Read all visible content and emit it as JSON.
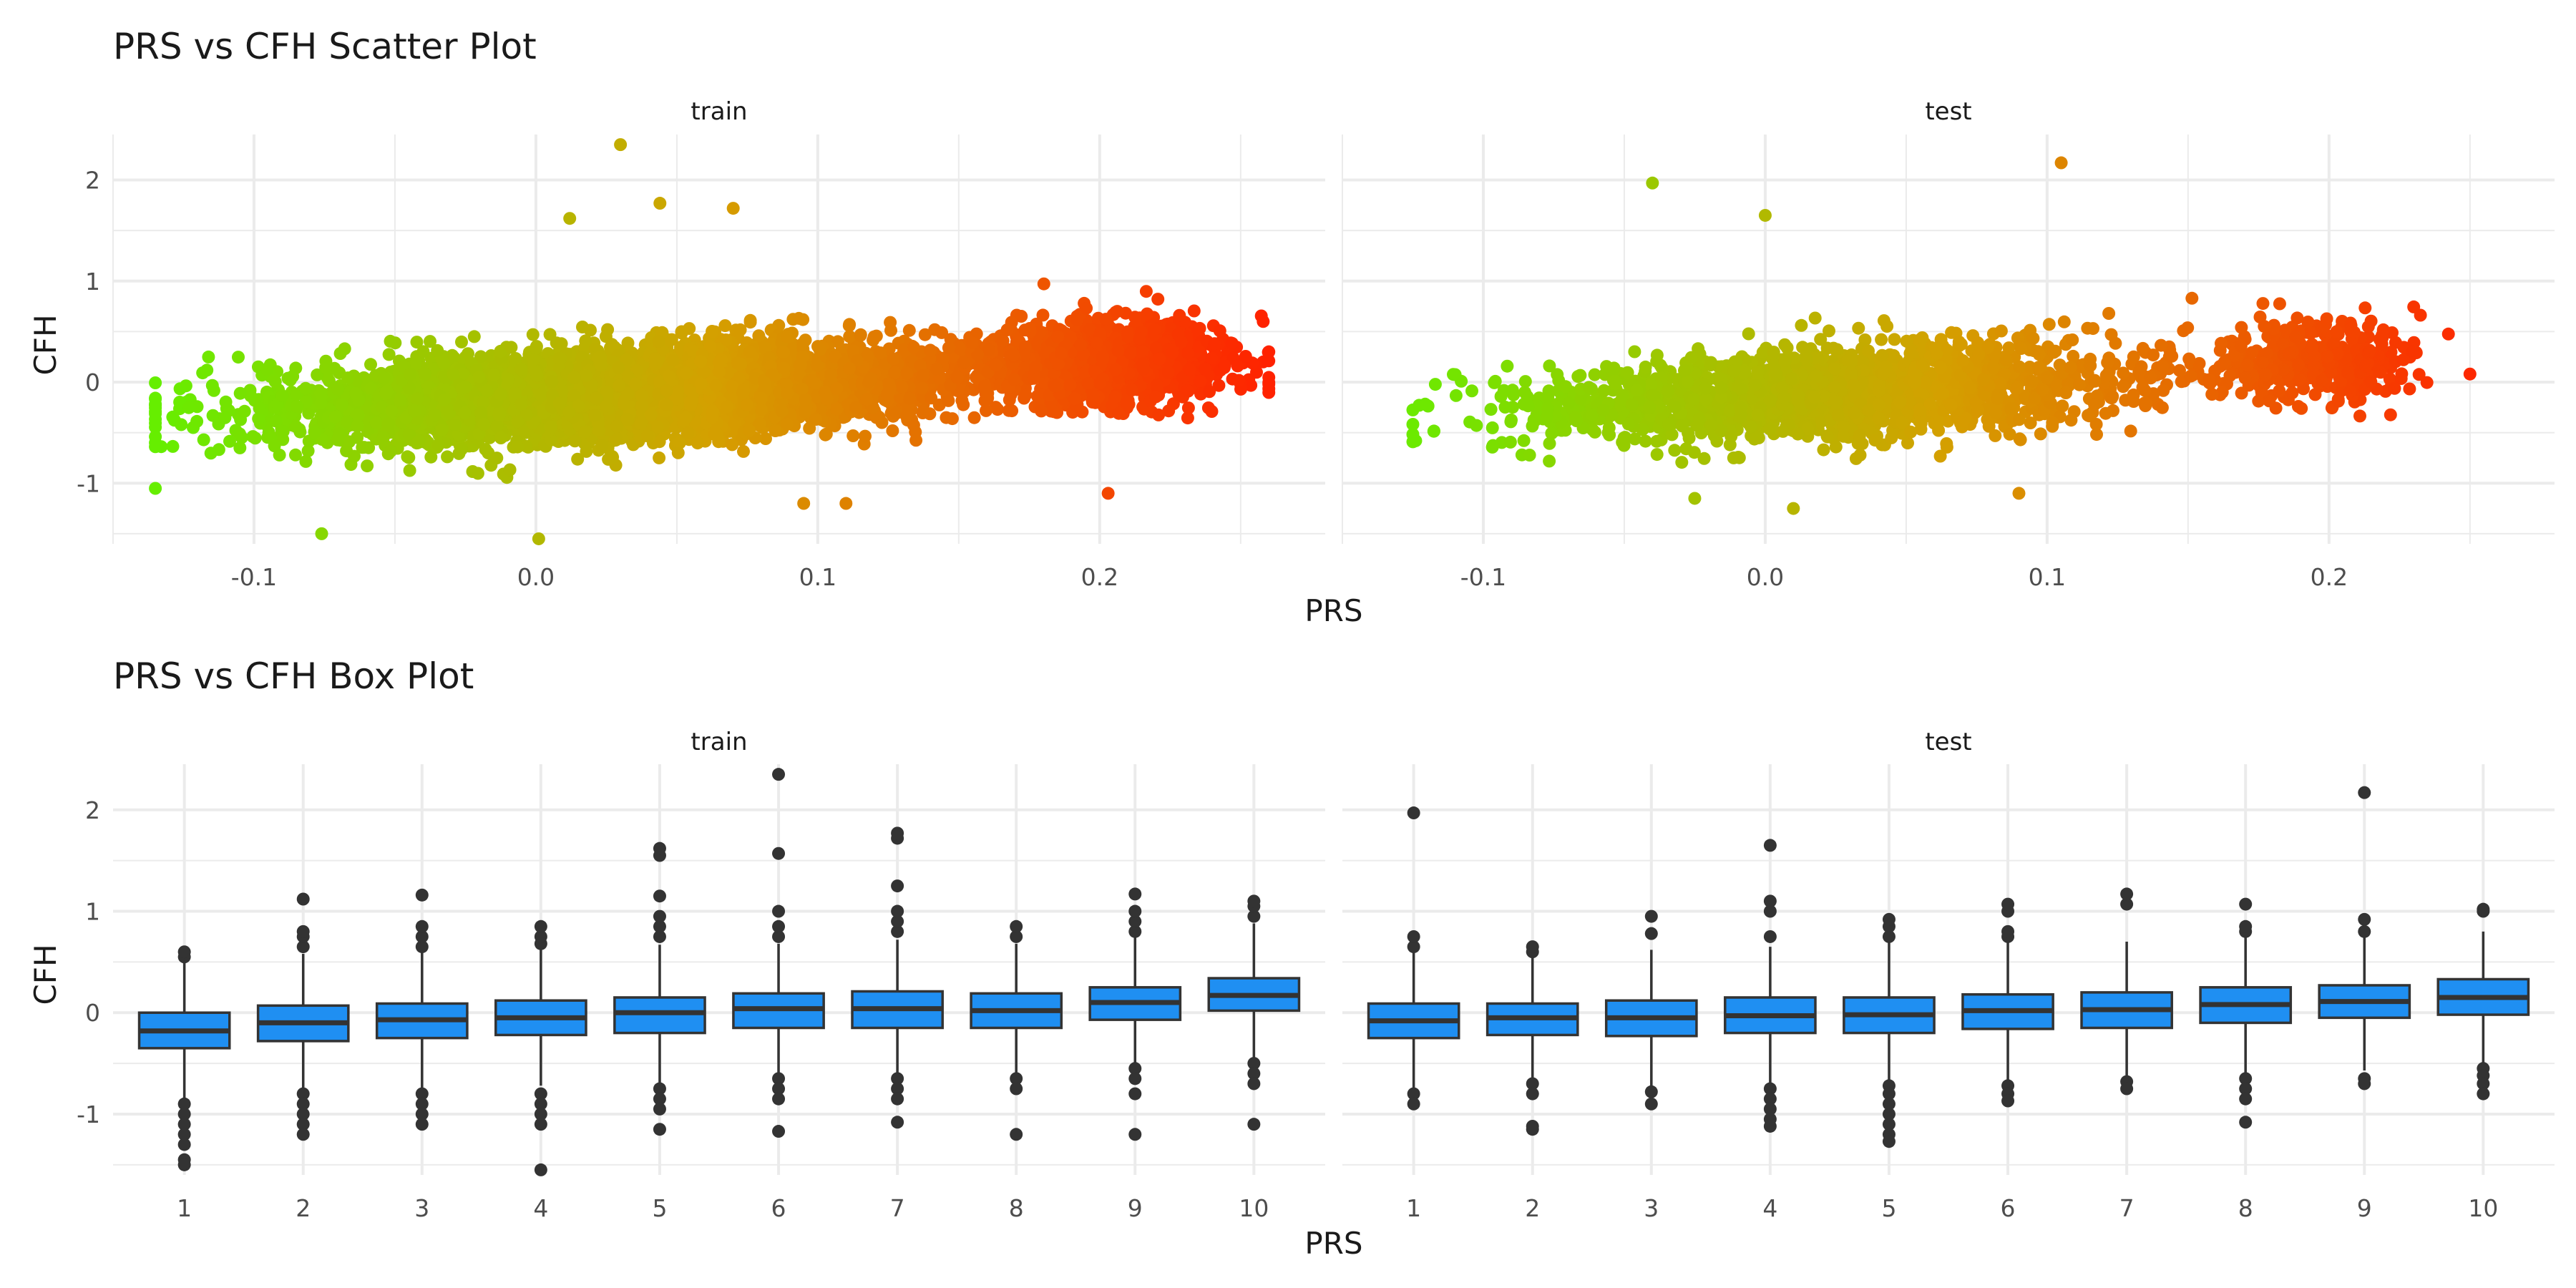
{
  "figure": {
    "scatter_title": "PRS vs CFH Scatter Plot",
    "box_title": "PRS vs CFH Box Plot",
    "xlabel": "PRS",
    "ylabel": "CFH"
  },
  "colors": {
    "gradient_low": "#66ee00",
    "gradient_mid": "#d4a000",
    "gradient_high": "#ff2200",
    "box_fill": "#1f8ff2",
    "box_line": "#333333",
    "grid": "#ebebeb",
    "text": "#1a1a1a",
    "tick_text": "#4d4d4d"
  },
  "chart_data": [
    {
      "type": "scatter",
      "title": "PRS vs CFH Scatter Plot",
      "xlabel": "PRS",
      "ylabel": "CFH",
      "xlim": [
        -0.15,
        0.28
      ],
      "ylim": [
        -1.6,
        2.45
      ],
      "xticks": [
        "-0.1",
        "0.0",
        "0.1",
        "0.2"
      ],
      "xtick_values": [
        -0.1,
        0.0,
        0.1,
        0.2
      ],
      "yticks": [
        "-1",
        "0",
        "1",
        "2"
      ],
      "ytick_values": [
        -1,
        0,
        1,
        2
      ],
      "grid": true,
      "color_encoding": "PRS gradient green (low) to red (high)",
      "panels": [
        {
          "name": "train",
          "n_points": 6000,
          "x_range": [
            -0.135,
            0.26
          ],
          "clusters": [
            {
              "x_range": [
                -0.1,
                0.16
              ],
              "y_mean_at_x_min": -0.3,
              "y_slope": 1.5,
              "y_sd": 0.22
            },
            {
              "x_range": [
                0.16,
                0.25
              ],
              "y_mean": 0.2,
              "y_sd": 0.2
            }
          ],
          "notable_points": [
            {
              "x": -0.135,
              "y": -0.6
            },
            {
              "x": -0.076,
              "y": -1.5
            },
            {
              "x": 0.001,
              "y": -1.55
            },
            {
              "x": 0.03,
              "y": 2.35
            },
            {
              "x": 0.044,
              "y": 1.77
            },
            {
              "x": 0.012,
              "y": 1.62
            },
            {
              "x": 0.07,
              "y": 1.72
            },
            {
              "x": 0.095,
              "y": -1.2
            },
            {
              "x": 0.11,
              "y": -1.2
            },
            {
              "x": 0.203,
              "y": -1.1
            },
            {
              "x": 0.258,
              "y": 0.6
            },
            {
              "x": 0.26,
              "y": 0.3
            }
          ]
        },
        {
          "name": "test",
          "n_points": 2200,
          "x_range": [
            -0.125,
            0.25
          ],
          "clusters": [
            {
              "x_range": [
                -0.1,
                0.15
              ],
              "y_mean_at_x_min": -0.3,
              "y_slope": 1.5,
              "y_sd": 0.22
            },
            {
              "x_range": [
                0.16,
                0.23
              ],
              "y_mean": 0.2,
              "y_sd": 0.2
            }
          ],
          "notable_points": [
            {
              "x": -0.124,
              "y": -0.58
            },
            {
              "x": -0.04,
              "y": 1.97
            },
            {
              "x": 0.0,
              "y": 1.65
            },
            {
              "x": 0.105,
              "y": 2.17
            },
            {
              "x": -0.025,
              "y": -1.15
            },
            {
              "x": 0.01,
              "y": -1.25
            },
            {
              "x": 0.09,
              "y": -1.1
            },
            {
              "x": 0.25,
              "y": 0.08
            }
          ]
        }
      ]
    },
    {
      "type": "box",
      "title": "PRS vs CFH Box Plot",
      "xlabel": "PRS",
      "ylabel": "CFH",
      "categories": [
        "1",
        "2",
        "3",
        "4",
        "5",
        "6",
        "7",
        "8",
        "9",
        "10"
      ],
      "ylim": [
        -1.6,
        2.45
      ],
      "yticks": [
        "-1",
        "0",
        "1",
        "2"
      ],
      "ytick_values": [
        -1,
        0,
        1,
        2
      ],
      "grid": true,
      "panels": [
        {
          "name": "train",
          "boxes": [
            {
              "q1": -0.35,
              "median": -0.18,
              "q3": 0.0,
              "lower": -0.85,
              "upper": 0.52,
              "outliers": [
                0.55,
                0.6,
                -0.9,
                -1.0,
                -1.1,
                -1.2,
                -1.3,
                -1.45,
                -1.5
              ]
            },
            {
              "q1": -0.28,
              "median": -0.1,
              "q3": 0.07,
              "lower": -0.78,
              "upper": 0.58,
              "outliers": [
                0.65,
                0.75,
                0.8,
                1.12,
                -0.8,
                -0.9,
                -1.0,
                -1.1,
                -1.2
              ]
            },
            {
              "q1": -0.25,
              "median": -0.07,
              "q3": 0.09,
              "lower": -0.74,
              "upper": 0.6,
              "outliers": [
                0.65,
                0.75,
                0.85,
                1.16,
                -0.8,
                -0.9,
                -1.0,
                -1.1
              ]
            },
            {
              "q1": -0.22,
              "median": -0.05,
              "q3": 0.12,
              "lower": -0.72,
              "upper": 0.62,
              "outliers": [
                0.68,
                0.75,
                0.85,
                -0.8,
                -0.9,
                -1.0,
                -1.1,
                -1.55
              ]
            },
            {
              "q1": -0.2,
              "median": 0.0,
              "q3": 0.15,
              "lower": -0.7,
              "upper": 0.67,
              "outliers": [
                0.75,
                0.85,
                0.95,
                1.15,
                1.55,
                1.62,
                -0.75,
                -0.85,
                -0.95,
                -1.15
              ]
            },
            {
              "q1": -0.15,
              "median": 0.04,
              "q3": 0.19,
              "lower": -0.62,
              "upper": 0.68,
              "outliers": [
                0.75,
                0.85,
                1.0,
                1.57,
                2.35,
                -0.65,
                -0.75,
                -0.85,
                -1.17
              ]
            },
            {
              "q1": -0.15,
              "median": 0.04,
              "q3": 0.21,
              "lower": -0.63,
              "upper": 0.72,
              "outliers": [
                0.8,
                0.9,
                1.0,
                1.25,
                1.72,
                1.77,
                -0.65,
                -0.75,
                -0.85,
                -1.08
              ]
            },
            {
              "q1": -0.15,
              "median": 0.02,
              "q3": 0.19,
              "lower": -0.62,
              "upper": 0.68,
              "outliers": [
                0.75,
                0.85,
                -0.65,
                -0.75,
                -1.2
              ]
            },
            {
              "q1": -0.07,
              "median": 0.1,
              "q3": 0.25,
              "lower": -0.52,
              "upper": 0.75,
              "outliers": [
                0.8,
                0.9,
                1.0,
                1.17,
                -0.55,
                -0.65,
                -0.8,
                -1.2
              ]
            },
            {
              "q1": 0.02,
              "median": 0.17,
              "q3": 0.34,
              "lower": -0.45,
              "upper": 0.88,
              "outliers": [
                0.95,
                1.05,
                1.1,
                -0.5,
                -0.6,
                -0.7,
                -1.1
              ]
            }
          ]
        },
        {
          "name": "test",
          "boxes": [
            {
              "q1": -0.25,
              "median": -0.08,
              "q3": 0.09,
              "lower": -0.78,
              "upper": 0.6,
              "outliers": [
                0.65,
                0.75,
                1.97,
                -0.8,
                -0.9
              ]
            },
            {
              "q1": -0.22,
              "median": -0.05,
              "q3": 0.09,
              "lower": -0.68,
              "upper": 0.55,
              "outliers": [
                0.6,
                0.65,
                -0.7,
                -0.8,
                -1.12,
                -1.15
              ]
            },
            {
              "q1": -0.23,
              "median": -0.05,
              "q3": 0.12,
              "lower": -0.72,
              "upper": 0.62,
              "outliers": [
                0.78,
                0.95,
                -0.78,
                -0.9
              ]
            },
            {
              "q1": -0.2,
              "median": -0.03,
              "q3": 0.15,
              "lower": -0.72,
              "upper": 0.65,
              "outliers": [
                0.75,
                1.0,
                1.1,
                1.65,
                -0.75,
                -0.85,
                -0.95,
                -1.05,
                -1.12
              ]
            },
            {
              "q1": -0.2,
              "median": -0.02,
              "q3": 0.15,
              "lower": -0.68,
              "upper": 0.7,
              "outliers": [
                0.75,
                0.85,
                0.92,
                -0.72,
                -0.8,
                -0.9,
                -1.0,
                -1.1,
                -1.2,
                -1.27
              ]
            },
            {
              "q1": -0.16,
              "median": 0.02,
              "q3": 0.18,
              "lower": -0.68,
              "upper": 0.7,
              "outliers": [
                0.75,
                0.8,
                1.0,
                1.07,
                -0.72,
                -0.8,
                -0.87
              ]
            },
            {
              "q1": -0.15,
              "median": 0.03,
              "q3": 0.2,
              "lower": -0.65,
              "upper": 0.7,
              "outliers": [
                1.07,
                1.17,
                -0.68,
                -0.75
              ]
            },
            {
              "q1": -0.1,
              "median": 0.08,
              "q3": 0.25,
              "lower": -0.6,
              "upper": 0.78,
              "outliers": [
                0.8,
                0.85,
                1.07,
                -0.65,
                -0.75,
                -0.85,
                -1.08
              ]
            },
            {
              "q1": -0.05,
              "median": 0.11,
              "q3": 0.27,
              "lower": -0.57,
              "upper": 0.77,
              "outliers": [
                0.8,
                0.92,
                2.17,
                -0.65,
                -0.7
              ]
            },
            {
              "q1": -0.02,
              "median": 0.15,
              "q3": 0.33,
              "lower": -0.52,
              "upper": 0.8,
              "outliers": [
                1.0,
                1.02,
                -0.55,
                -0.62,
                -0.7,
                -0.8
              ]
            }
          ]
        }
      ]
    }
  ]
}
